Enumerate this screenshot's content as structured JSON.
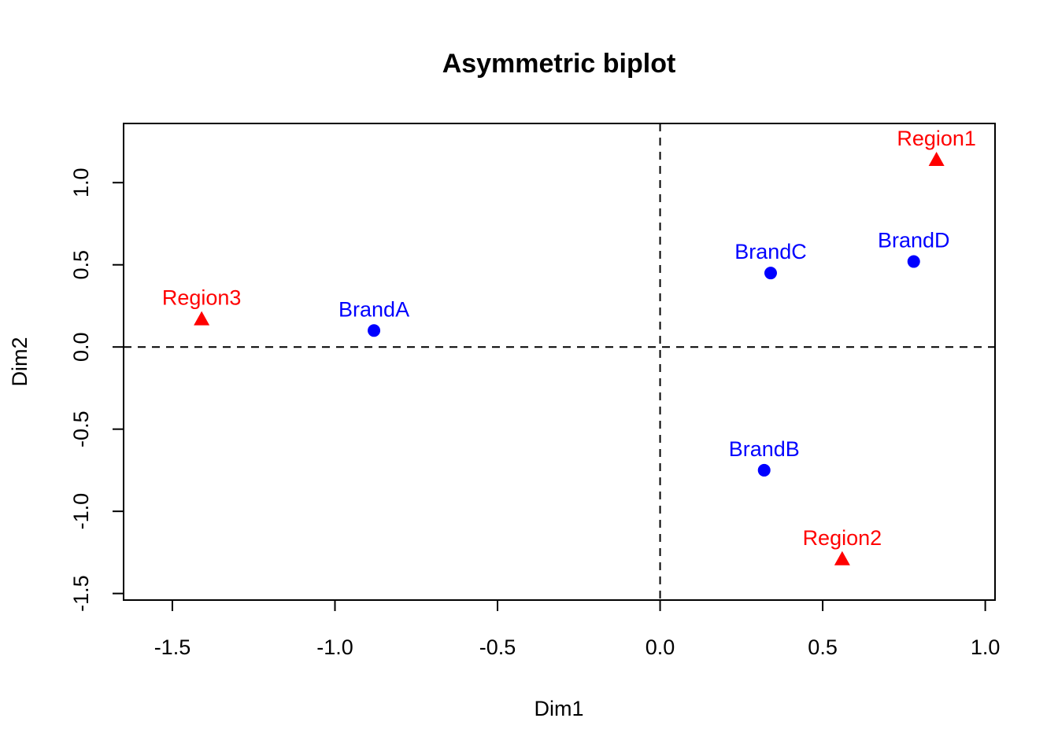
{
  "chart_data": {
    "type": "scatter",
    "title": "Asymmetric biplot",
    "xlabel": "Dim1",
    "ylabel": "Dim2",
    "xlim": [
      -1.65,
      1.03
    ],
    "ylim": [
      -1.54,
      1.36
    ],
    "x_ticks": [
      -1.5,
      -1.0,
      -0.5,
      0.0,
      0.5,
      1.0
    ],
    "x_tick_labels": [
      "-1.5",
      "-1.0",
      "-0.5",
      "0.0",
      "0.5",
      "1.0"
    ],
    "y_ticks": [
      -1.5,
      -1.0,
      -0.5,
      0.0,
      0.5,
      1.0
    ],
    "y_tick_labels": [
      "-1.5",
      "-1.0",
      "-0.5",
      "0.0",
      "0.5",
      "1.0"
    ],
    "grid": false,
    "reference_lines": {
      "x": 0,
      "y": 0,
      "style": "dashed"
    },
    "series": [
      {
        "marker": "circle",
        "color": "#0000ff",
        "points": [
          {
            "label": "BrandA",
            "x": -0.88,
            "y": 0.1
          },
          {
            "label": "BrandB",
            "x": 0.32,
            "y": -0.75
          },
          {
            "label": "BrandC",
            "x": 0.34,
            "y": 0.45
          },
          {
            "label": "BrandD",
            "x": 0.78,
            "y": 0.52
          }
        ]
      },
      {
        "marker": "triangle",
        "color": "#ff0000",
        "points": [
          {
            "label": "Region1",
            "x": 0.85,
            "y": 1.14
          },
          {
            "label": "Region2",
            "x": 0.56,
            "y": -1.29
          },
          {
            "label": "Region3",
            "x": -1.41,
            "y": 0.17
          }
        ]
      }
    ]
  }
}
